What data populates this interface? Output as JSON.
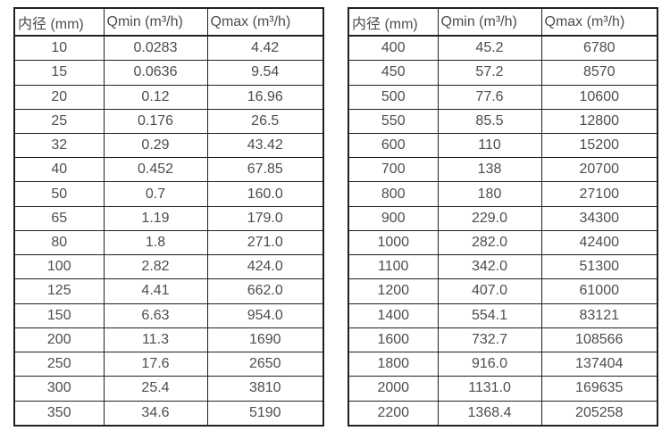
{
  "style": {
    "background": "#ffffff",
    "text_color": "#4d4d4d",
    "border_color": "#212121"
  },
  "tables": [
    {
      "name": "inner-diameter-flow-range-table-1",
      "headers": [
        "内径 (mm)",
        "Qmin (m³/h)",
        "Qmax (m³/h)"
      ],
      "rows": [
        [
          "10",
          "0.0283",
          "4.42"
        ],
        [
          "15",
          "0.0636",
          "9.54"
        ],
        [
          "20",
          "0.12",
          "16.96"
        ],
        [
          "25",
          "0.176",
          "26.5"
        ],
        [
          "32",
          "0.29",
          "43.42"
        ],
        [
          "40",
          "0.452",
          "67.85"
        ],
        [
          "50",
          "0.7",
          "160.0"
        ],
        [
          "65",
          "1.19",
          "179.0"
        ],
        [
          "80",
          "1.8",
          "271.0"
        ],
        [
          "100",
          "2.82",
          "424.0"
        ],
        [
          "125",
          "4.41",
          "662.0"
        ],
        [
          "150",
          "6.63",
          "954.0"
        ],
        [
          "200",
          "11.3",
          "1690"
        ],
        [
          "250",
          "17.6",
          "2650"
        ],
        [
          "300",
          "25.4",
          "3810"
        ],
        [
          "350",
          "34.6",
          "5190"
        ]
      ]
    },
    {
      "name": "inner-diameter-flow-range-table-2",
      "headers": [
        "内径 (mm)",
        "Qmin (m³/h)",
        "Qmax (m³/h)"
      ],
      "rows": [
        [
          "400",
          "45.2",
          "6780"
        ],
        [
          "450",
          "57.2",
          "8570"
        ],
        [
          "500",
          "77.6",
          "10600"
        ],
        [
          "550",
          "85.5",
          "12800"
        ],
        [
          "600",
          "110",
          "15200"
        ],
        [
          "700",
          "138",
          "20700"
        ],
        [
          "800",
          "180",
          "27100"
        ],
        [
          "900",
          "229.0",
          "34300"
        ],
        [
          "1000",
          "282.0",
          "42400"
        ],
        [
          "1100",
          "342.0",
          "51300"
        ],
        [
          "1200",
          "407.0",
          "61000"
        ],
        [
          "1400",
          "554.1",
          "83121"
        ],
        [
          "1600",
          "732.7",
          "108566"
        ],
        [
          "1800",
          "916.0",
          "137404"
        ],
        [
          "2000",
          "1131.0",
          "169635"
        ],
        [
          "2200",
          "1368.4",
          "205258"
        ]
      ]
    }
  ]
}
